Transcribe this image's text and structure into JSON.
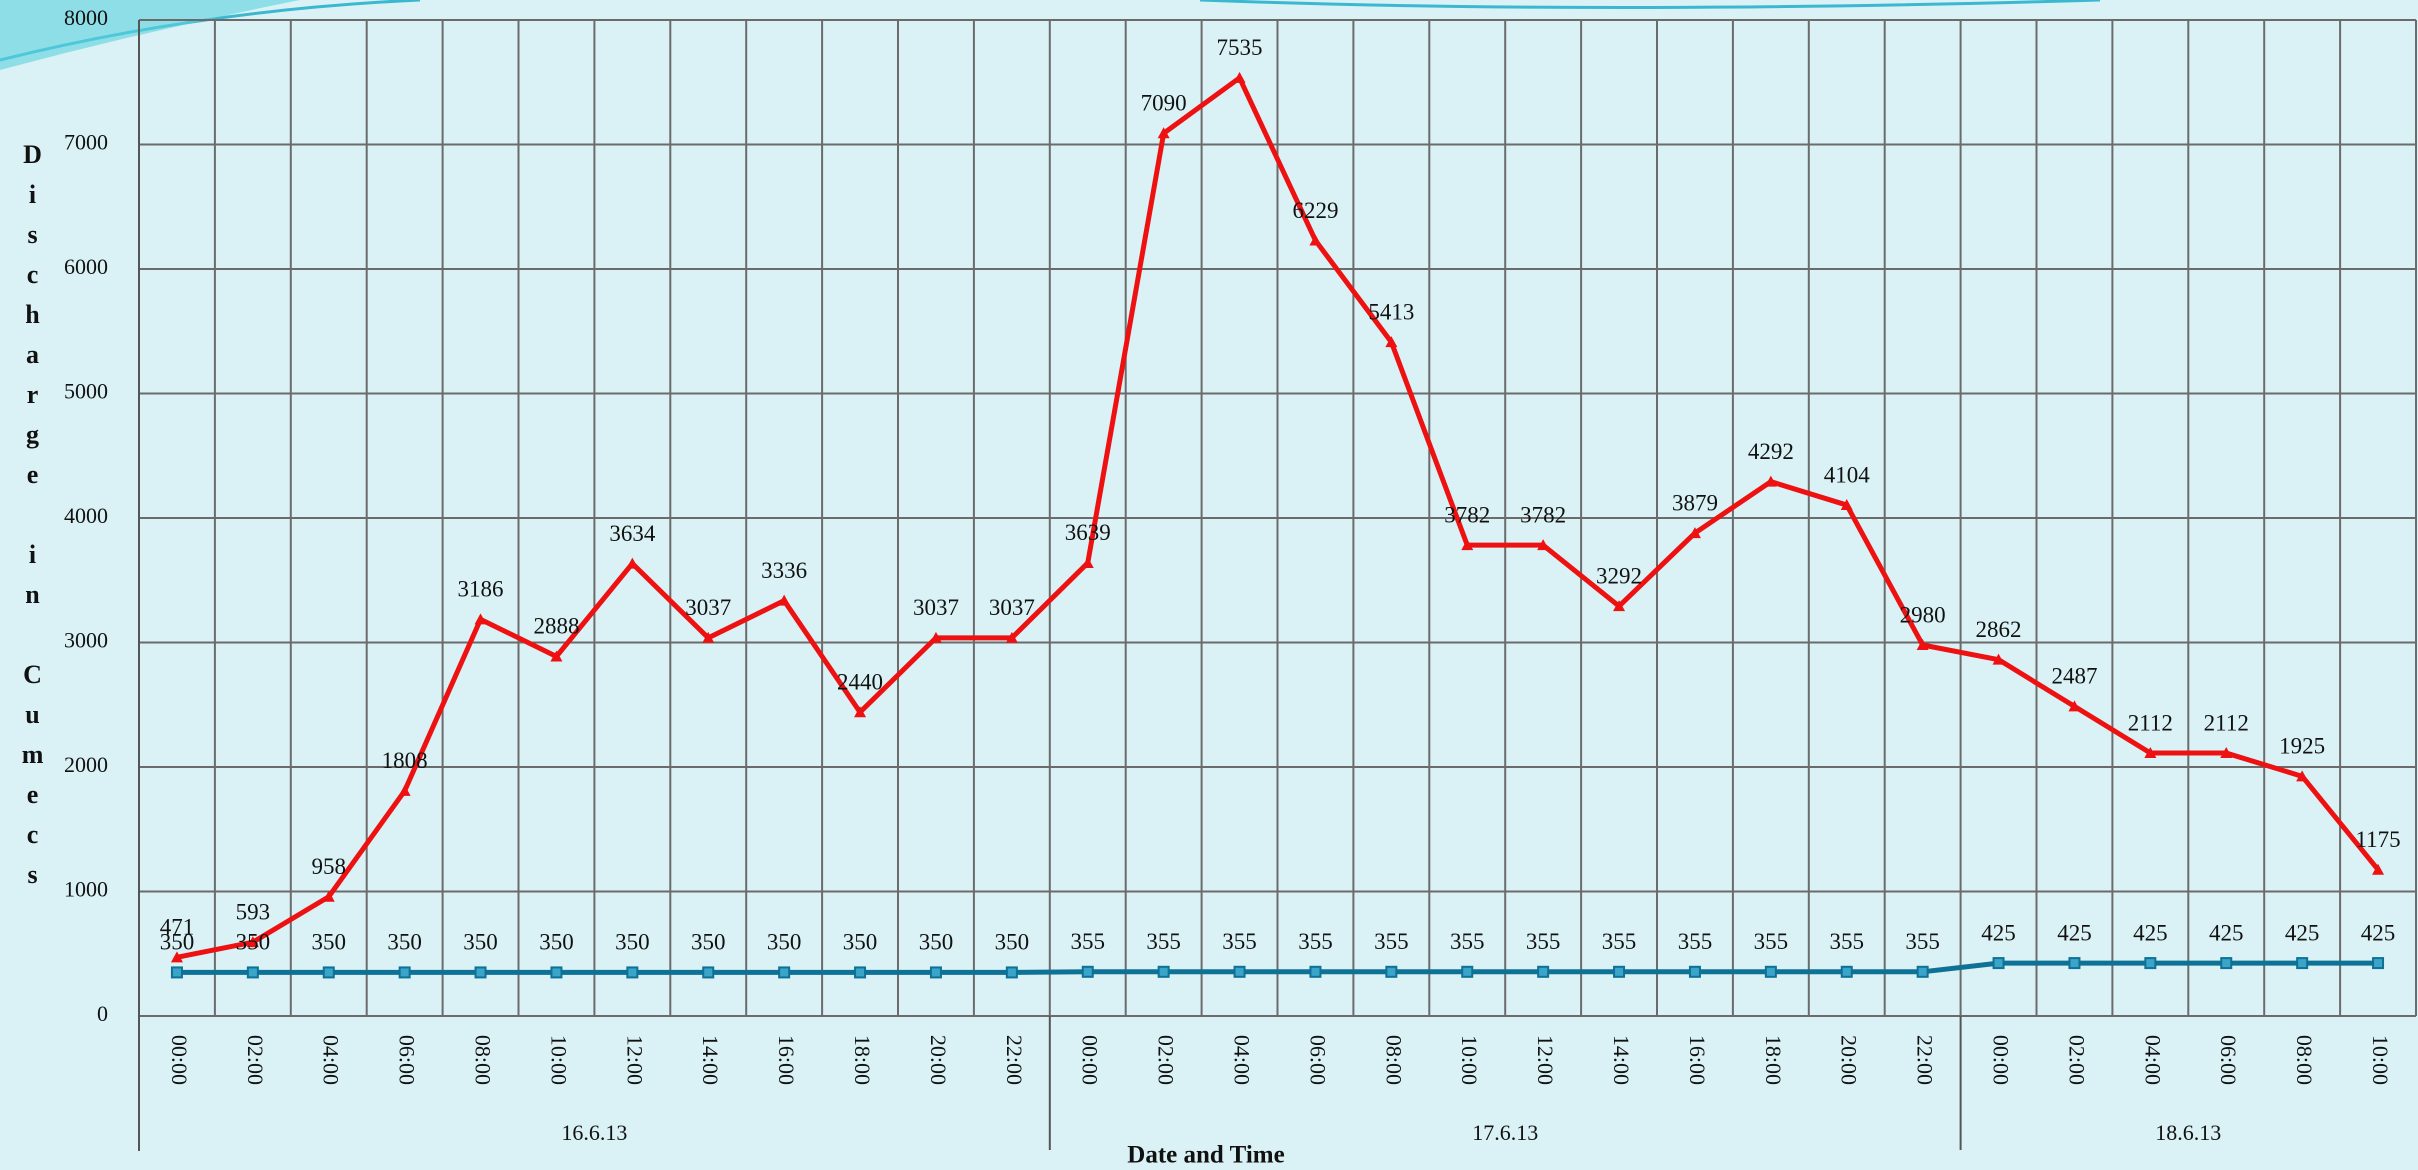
{
  "chart_data": {
    "type": "line",
    "y_label": "Discharge in Cumecs",
    "x_label": "Date and Time",
    "groups": [
      {
        "name": "16.6.13",
        "categories": [
          "00:00",
          "02:00",
          "04:00",
          "06:00",
          "08:00",
          "10:00",
          "12:00",
          "14:00",
          "16:00",
          "18:00",
          "20:00",
          "22:00"
        ]
      },
      {
        "name": "17.6.13",
        "categories": [
          "00:00",
          "02:00",
          "04:00",
          "06:00",
          "08:00",
          "10:00",
          "12:00",
          "14:00",
          "16:00",
          "18:00",
          "20:00",
          "22:00"
        ]
      },
      {
        "name": "18.6.13",
        "categories": [
          "00:00",
          "02:00",
          "04:00",
          "06:00",
          "08:00",
          "10:00"
        ]
      }
    ],
    "series": [
      {
        "color": "#ee1111",
        "marker": "triangle",
        "values": [
          471,
          593,
          958,
          1808,
          3186,
          2888,
          3634,
          3037,
          3336,
          2440,
          3037,
          3037,
          3639,
          7090,
          7535,
          6229,
          5413,
          3782,
          3782,
          3292,
          3879,
          4292,
          4104,
          2980,
          2862,
          2487,
          2112,
          2112,
          1925,
          1175
        ]
      },
      {
        "color": "#0e7196",
        "marker": "square",
        "values": [
          350,
          350,
          350,
          350,
          350,
          350,
          350,
          350,
          350,
          350,
          350,
          350,
          355,
          355,
          355,
          355,
          355,
          355,
          355,
          355,
          355,
          355,
          355,
          355,
          425,
          425,
          425,
          425,
          425,
          425
        ]
      }
    ],
    "ylim": [
      0,
      8000
    ],
    "yticks": [
      0,
      1000,
      2000,
      3000,
      4000,
      5000,
      6000,
      7000,
      8000
    ],
    "grid": true
  }
}
